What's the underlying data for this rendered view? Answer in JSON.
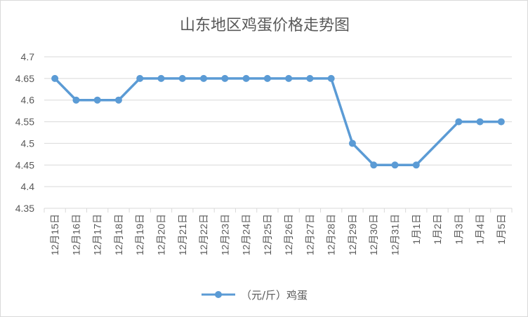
{
  "chart_data": {
    "type": "line",
    "title": "山东地区鸡蛋价格走势图",
    "categories": [
      "12月15日",
      "12月16日",
      "12月17日",
      "12月18日",
      "12月19日",
      "12月20日",
      "12月21日",
      "12月22日",
      "12月23日",
      "12月24日",
      "12月25日",
      "12月26日",
      "12月27日",
      "12月28日",
      "12月29日",
      "12月30日",
      "12月31日",
      "1月1日",
      "1月2日",
      "1月3日",
      "1月4日",
      "1月5日"
    ],
    "series": [
      {
        "name": "（元/斤）鸡蛋",
        "color": "#5b9bd5",
        "values": [
          4.65,
          4.6,
          4.6,
          4.6,
          4.65,
          4.65,
          4.65,
          4.65,
          4.65,
          4.65,
          4.65,
          4.65,
          4.65,
          4.65,
          4.5,
          4.45,
          4.45,
          4.45,
          null,
          4.55,
          4.55,
          4.55
        ]
      }
    ],
    "yticks": [
      "4.35",
      "4.4",
      "4.45",
      "4.5",
      "4.55",
      "4.6",
      "4.65",
      "4.7"
    ],
    "ylim": [
      4.35,
      4.7
    ],
    "grid": true,
    "legend_position": "bottom"
  }
}
